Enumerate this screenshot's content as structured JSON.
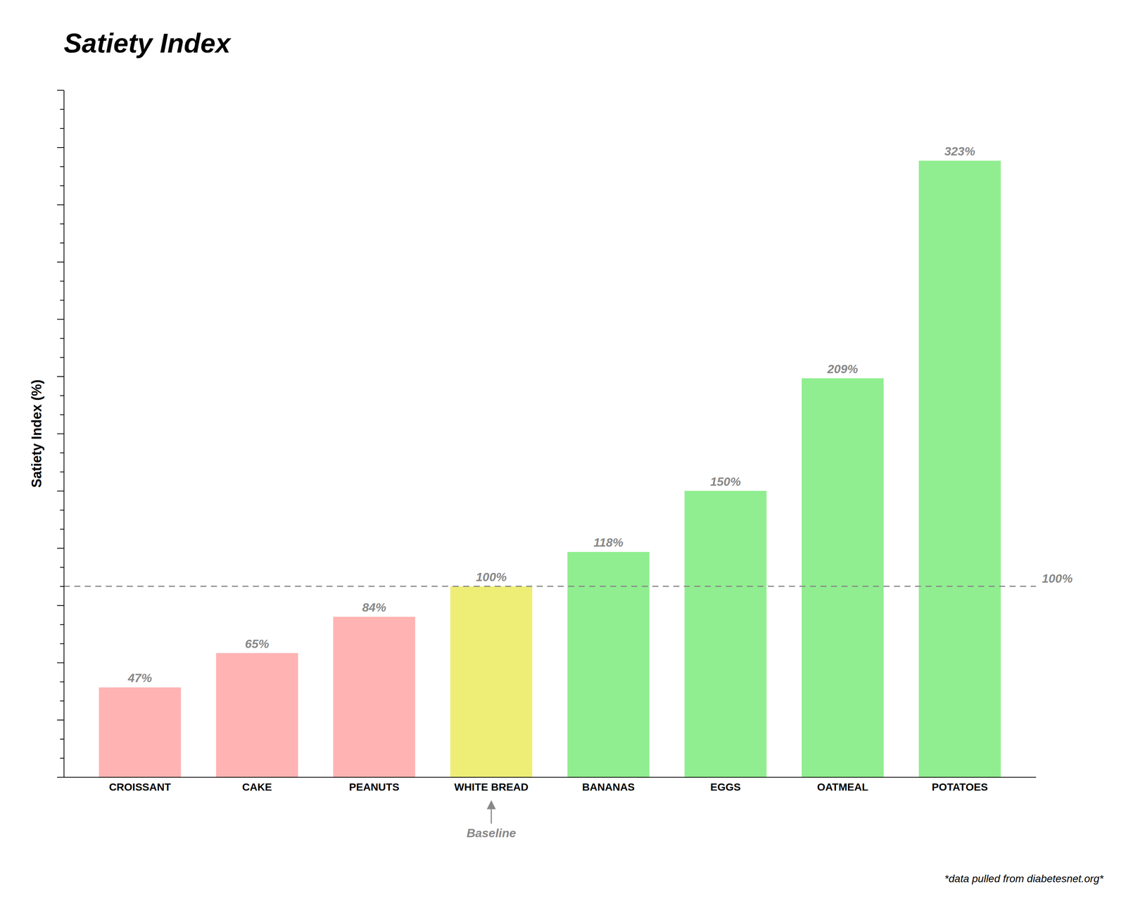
{
  "chart_data": {
    "type": "bar",
    "title": "Satiety Index",
    "ylabel": "Satiety Index (%)",
    "categories": [
      "CROISSANT",
      "CAKE",
      "PEANUTS",
      "WHITE BREAD",
      "BANANAS",
      "EGGS",
      "OATMEAL",
      "POTATOES"
    ],
    "values": [
      47,
      65,
      84,
      100,
      118,
      150,
      209,
      323
    ],
    "value_labels": [
      "47%",
      "65%",
      "84%",
      "100%",
      "118%",
      "150%",
      "209%",
      "323%"
    ],
    "colors": [
      "#FFB3B3",
      "#FFB3B3",
      "#FFB3B3",
      "#EEEE77",
      "#90EE90",
      "#90EE90",
      "#90EE90",
      "#90EE90"
    ],
    "ylim": [
      0,
      360
    ],
    "yticks": [
      0,
      10,
      20,
      30,
      40,
      50,
      60,
      70,
      80,
      90,
      100,
      110,
      120,
      130,
      140,
      150,
      160,
      170,
      180,
      190,
      200,
      210,
      220,
      230,
      240,
      250,
      260,
      270,
      280,
      290,
      300,
      310,
      320,
      330,
      340,
      350,
      360
    ],
    "tick_labels": "x",
    "data_labels": true,
    "grid": false,
    "annotations": [
      {
        "y": 100,
        "text": "100%"
      },
      {
        "x": "WHITE BREAD",
        "text": "Baseline"
      }
    ],
    "footnote": "*data pulled from diabetesnet.org*"
  }
}
